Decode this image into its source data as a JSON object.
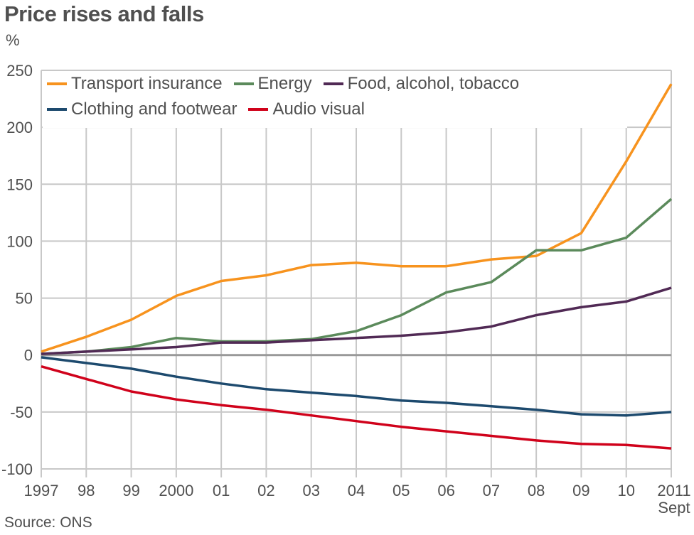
{
  "chart_data": {
    "type": "line",
    "title": "Price rises and falls",
    "ylabel": "%",
    "source": "Source: ONS",
    "x": [
      1997,
      1998,
      1999,
      2000,
      2001,
      2002,
      2003,
      2004,
      2005,
      2006,
      2007,
      2008,
      2009,
      2010,
      2011
    ],
    "xtick_labels": [
      "1997",
      "98",
      "99",
      "2000",
      "01",
      "02",
      "03",
      "04",
      "05",
      "06",
      "07",
      "08",
      "09",
      "10",
      "2011"
    ],
    "xtick_sublabel": "Sept",
    "yticks": [
      250,
      200,
      150,
      100,
      50,
      0,
      -50,
      -100
    ],
    "ylim": [
      -100,
      250
    ],
    "grid": true,
    "legend_placement": "top-left",
    "series": [
      {
        "name": "Transport insurance",
        "color": "#f7931e",
        "values": [
          3,
          16,
          31,
          52,
          65,
          70,
          79,
          81,
          78,
          78,
          84,
          87,
          107,
          170,
          238
        ]
      },
      {
        "name": "Energy",
        "color": "#5b8a5b",
        "values": [
          1,
          3,
          7,
          15,
          12,
          12,
          14,
          21,
          35,
          55,
          64,
          92,
          92,
          103,
          137
        ]
      },
      {
        "name": "Food, alcohol, tobacco",
        "color": "#512a55",
        "values": [
          1,
          3,
          5,
          7,
          11,
          11,
          13,
          15,
          17,
          20,
          25,
          35,
          42,
          47,
          59
        ]
      },
      {
        "name": "Clothing and footwear",
        "color": "#1d4a6e",
        "values": [
          -2,
          -7,
          -12,
          -19,
          -25,
          -30,
          -33,
          -36,
          -40,
          -42,
          -45,
          -48,
          -52,
          -53,
          -50
        ]
      },
      {
        "name": "Audio visual",
        "color": "#d0021b",
        "values": [
          -10,
          -21,
          -32,
          -39,
          -44,
          -48,
          -53,
          -58,
          -63,
          -67,
          -71,
          -75,
          -78,
          -79,
          -82
        ]
      }
    ]
  }
}
